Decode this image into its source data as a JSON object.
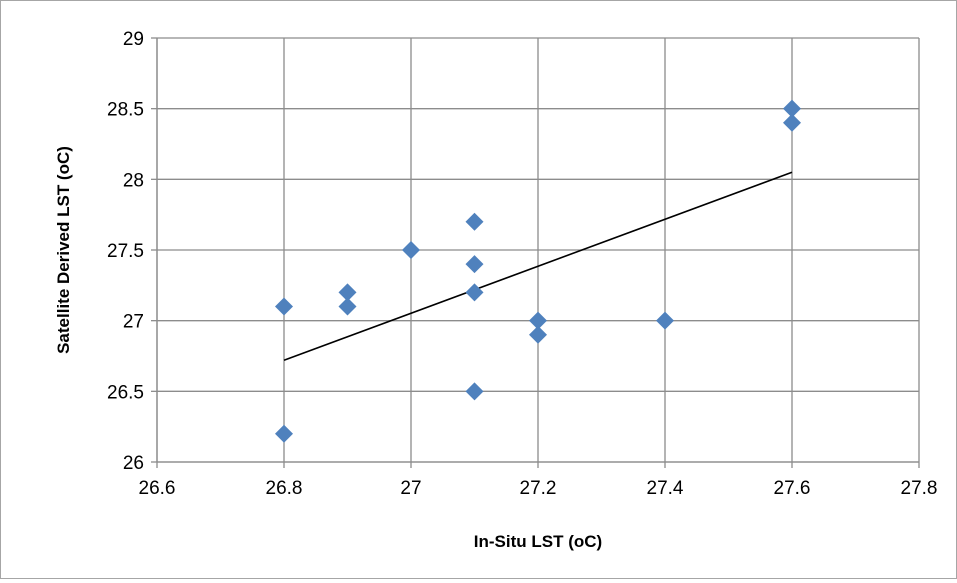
{
  "chart_data": {
    "type": "scatter",
    "title": "",
    "xlabel": "In-Situ  LST (oC)",
    "ylabel": "Satellite Derived LST (oC)",
    "xlim": [
      26.6,
      27.8
    ],
    "ylim": [
      26,
      29
    ],
    "xticks": [
      26.6,
      26.8,
      27.0,
      27.2,
      27.4,
      27.6,
      27.8
    ],
    "xtick_labels": [
      "26.6",
      "26.8",
      "27",
      "27.2",
      "27.4",
      "27.6",
      "27.8"
    ],
    "yticks": [
      26,
      26.5,
      27,
      27.5,
      28,
      28.5,
      29
    ],
    "ytick_labels": [
      "26",
      "26.5",
      "27",
      "27.5",
      "28",
      "28.5",
      "29"
    ],
    "grid": true,
    "legend": false,
    "marker": "diamond",
    "marker_color": "#4f81bd",
    "series": [
      {
        "x": [
          26.8,
          26.8,
          26.9,
          26.9,
          27.0,
          27.1,
          27.1,
          27.1,
          27.1,
          27.2,
          27.2,
          27.4,
          27.6,
          27.6
        ],
        "y": [
          27.1,
          26.2,
          27.2,
          27.1,
          27.5,
          27.7,
          27.4,
          27.2,
          26.5,
          27.0,
          26.9,
          27.0,
          28.5,
          28.4
        ]
      }
    ],
    "trendline": {
      "type": "linear",
      "x": [
        26.8,
        27.6
      ],
      "y": [
        26.72,
        28.05
      ],
      "color": "#000000"
    }
  }
}
